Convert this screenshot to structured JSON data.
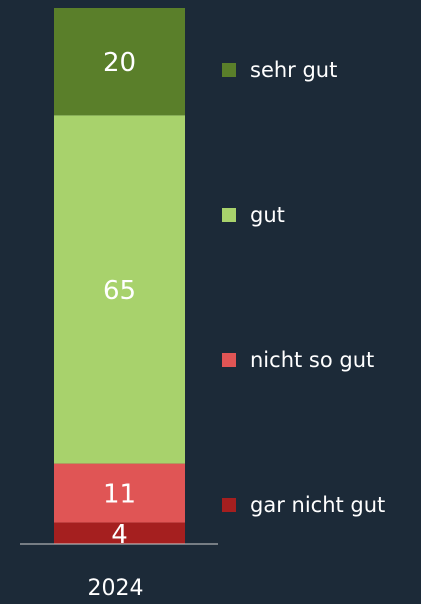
{
  "chart_data": {
    "type": "stacked_bar",
    "categories": [
      "2024"
    ],
    "series": [
      {
        "name": "gar nicht gut",
        "color": "#a51f1f",
        "values": [
          4
        ]
      },
      {
        "name": "nicht so gut",
        "color": "#e05555",
        "values": [
          11
        ]
      },
      {
        "name": "gut",
        "color": "#a8d26c",
        "values": [
          65
        ]
      },
      {
        "name": "sehr gut",
        "color": "#5a7f2a",
        "values": [
          20
        ]
      }
    ],
    "ylim": [
      0,
      100
    ],
    "legend": "right"
  }
}
